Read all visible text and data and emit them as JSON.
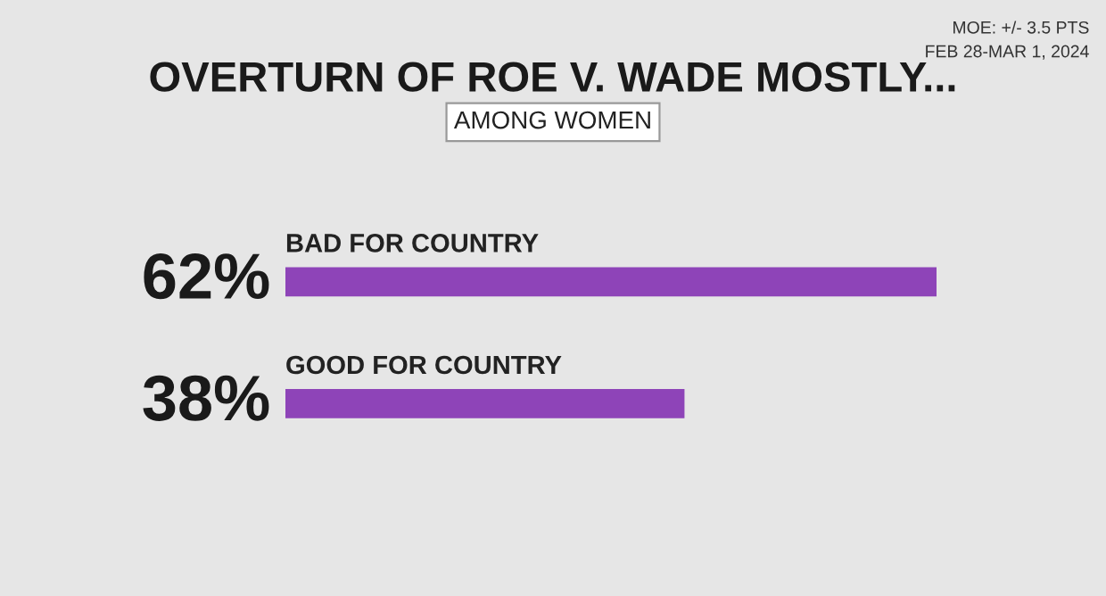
{
  "chart_data": {
    "type": "bar",
    "orientation": "horizontal",
    "title": "OVERTURN OF ROE V. WADE MOSTLY...",
    "subtitle": "AMONG WOMEN",
    "annotations": [
      "MOE: +/- 3.5 PTS",
      "FEB 28-MAR 1, 2024"
    ],
    "categories": [
      "BAD FOR COUNTRY",
      "GOOD FOR COUNTRY"
    ],
    "values": [
      62,
      38
    ],
    "value_labels": [
      "62%",
      "38%"
    ],
    "color": "#8e44b8"
  }
}
